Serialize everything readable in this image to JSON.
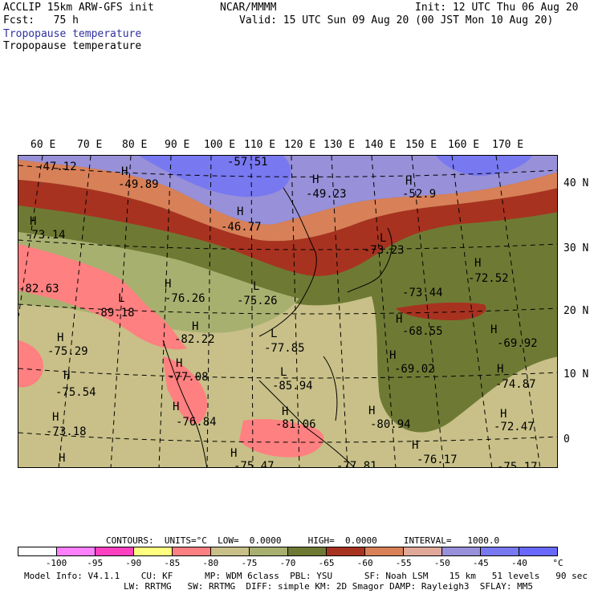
{
  "header": {
    "model": "ACCLIP 15km ARW-GFS init",
    "center": "NCAR/MMMM",
    "init": "Init: 12 UTC Thu 06 Aug 20",
    "fcst": "Fcst:   75 h",
    "valid": "Valid: 15 UTC Sun 09 Aug 20 (00 JST Mon 10 Aug 20)",
    "field1": "Tropopause temperature",
    "field2": "Tropopause temperature"
  },
  "map": {
    "lon_labels": [
      "60 E",
      "70 E",
      "80 E",
      "90 E",
      "100 E",
      "110 E",
      "120 E",
      "130 E",
      "140 E",
      "150 E",
      "160 E",
      "170 E"
    ],
    "lat_labels": [
      "40 N",
      "30 N",
      "20 N",
      "10 N",
      "0"
    ],
    "labels": [
      {
        "text": "-47.12",
        "kind": "value"
      },
      {
        "text": "H",
        "kind": "marker"
      },
      {
        "text": "-49.89",
        "kind": "value"
      },
      {
        "text": "-57.51",
        "kind": "value"
      },
      {
        "text": "H",
        "kind": "marker"
      },
      {
        "text": "-49.23",
        "kind": "value"
      },
      {
        "text": "H",
        "kind": "marker"
      },
      {
        "text": "-52.9",
        "kind": "value"
      },
      {
        "text": "H",
        "kind": "marker"
      },
      {
        "text": "-73.14",
        "kind": "value"
      },
      {
        "text": "H",
        "kind": "marker"
      },
      {
        "text": "-46.77",
        "kind": "value"
      },
      {
        "text": "L",
        "kind": "marker"
      },
      {
        "text": "-73.23",
        "kind": "value"
      },
      {
        "text": "H",
        "kind": "marker"
      },
      {
        "text": "-72.52",
        "kind": "value"
      },
      {
        "text": "-82.63",
        "kind": "value"
      },
      {
        "text": "H",
        "kind": "marker"
      },
      {
        "text": "-76.26",
        "kind": "value"
      },
      {
        "text": "L",
        "kind": "marker"
      },
      {
        "text": "-75.26",
        "kind": "value"
      },
      {
        "text": "-73.44",
        "kind": "value"
      },
      {
        "text": "L",
        "kind": "marker"
      },
      {
        "text": "-89.18",
        "kind": "value"
      },
      {
        "text": "H",
        "kind": "marker"
      },
      {
        "text": "-68.55",
        "kind": "value"
      },
      {
        "text": "H",
        "kind": "marker"
      },
      {
        "text": "-69.92",
        "kind": "value"
      },
      {
        "text": "H",
        "kind": "marker"
      },
      {
        "text": "-75.29",
        "kind": "value"
      },
      {
        "text": "H",
        "kind": "marker"
      },
      {
        "text": "-82.22",
        "kind": "value"
      },
      {
        "text": "L",
        "kind": "marker"
      },
      {
        "text": "-77.85",
        "kind": "value"
      },
      {
        "text": "H",
        "kind": "marker"
      },
      {
        "text": "-69.02",
        "kind": "value"
      },
      {
        "text": "H",
        "kind": "marker"
      },
      {
        "text": "-75.54",
        "kind": "value"
      },
      {
        "text": "H",
        "kind": "marker"
      },
      {
        "text": "-77.08",
        "kind": "value"
      },
      {
        "text": "L",
        "kind": "marker"
      },
      {
        "text": "-85.94",
        "kind": "value"
      },
      {
        "text": "H",
        "kind": "marker"
      },
      {
        "text": "-74.87",
        "kind": "value"
      },
      {
        "text": "H",
        "kind": "marker"
      },
      {
        "text": "-73.18",
        "kind": "value"
      },
      {
        "text": "H",
        "kind": "marker"
      },
      {
        "text": "-76.84",
        "kind": "value"
      },
      {
        "text": "H",
        "kind": "marker"
      },
      {
        "text": "-81.06",
        "kind": "value"
      },
      {
        "text": "H",
        "kind": "marker"
      },
      {
        "text": "-80.94",
        "kind": "value"
      },
      {
        "text": "H",
        "kind": "marker"
      },
      {
        "text": "-72.47",
        "kind": "value"
      },
      {
        "text": "H",
        "kind": "marker"
      },
      {
        "text": "H",
        "kind": "marker"
      },
      {
        "text": "-76.17",
        "kind": "value"
      },
      {
        "text": "H",
        "kind": "marker"
      },
      {
        "text": "-75.47",
        "kind": "value"
      },
      {
        "text": "-77.81",
        "kind": "value"
      },
      {
        "text": "-75.17",
        "kind": "value"
      }
    ]
  },
  "contours": {
    "text": "CONTOURS:  UNITS=°C  LOW=  0.0000     HIGH=  0.0000     INTERVAL=   1000.0"
  },
  "legend": {
    "colors": [
      "#ffffff",
      "#ff80ff",
      "#ff40c0",
      "#ffff80",
      "#ff8080",
      "#c8c088",
      "#a8b070",
      "#6e7a34",
      "#a83220",
      "#d88058",
      "#e0a898",
      "#9890d8",
      "#7878f0",
      "#6868ff"
    ],
    "ticks": [
      "-100",
      "-95",
      "-90",
      "-85",
      "-80",
      "-75",
      "-70",
      "-65",
      "-60",
      "-55",
      "-50",
      "-45",
      "-40",
      "°C"
    ]
  },
  "footer": {
    "line1": "Model Info: V4.1.1    CU: KF      MP: WDM 6class  PBL: YSU      SF: Noah LSM    15 km   51 levels   90 sec",
    "line2": "LW: RRTMG   SW: RRTMG  DIFF: simple KM: 2D Smagor DAMP: Rayleigh3  SFLAY: MM5"
  }
}
